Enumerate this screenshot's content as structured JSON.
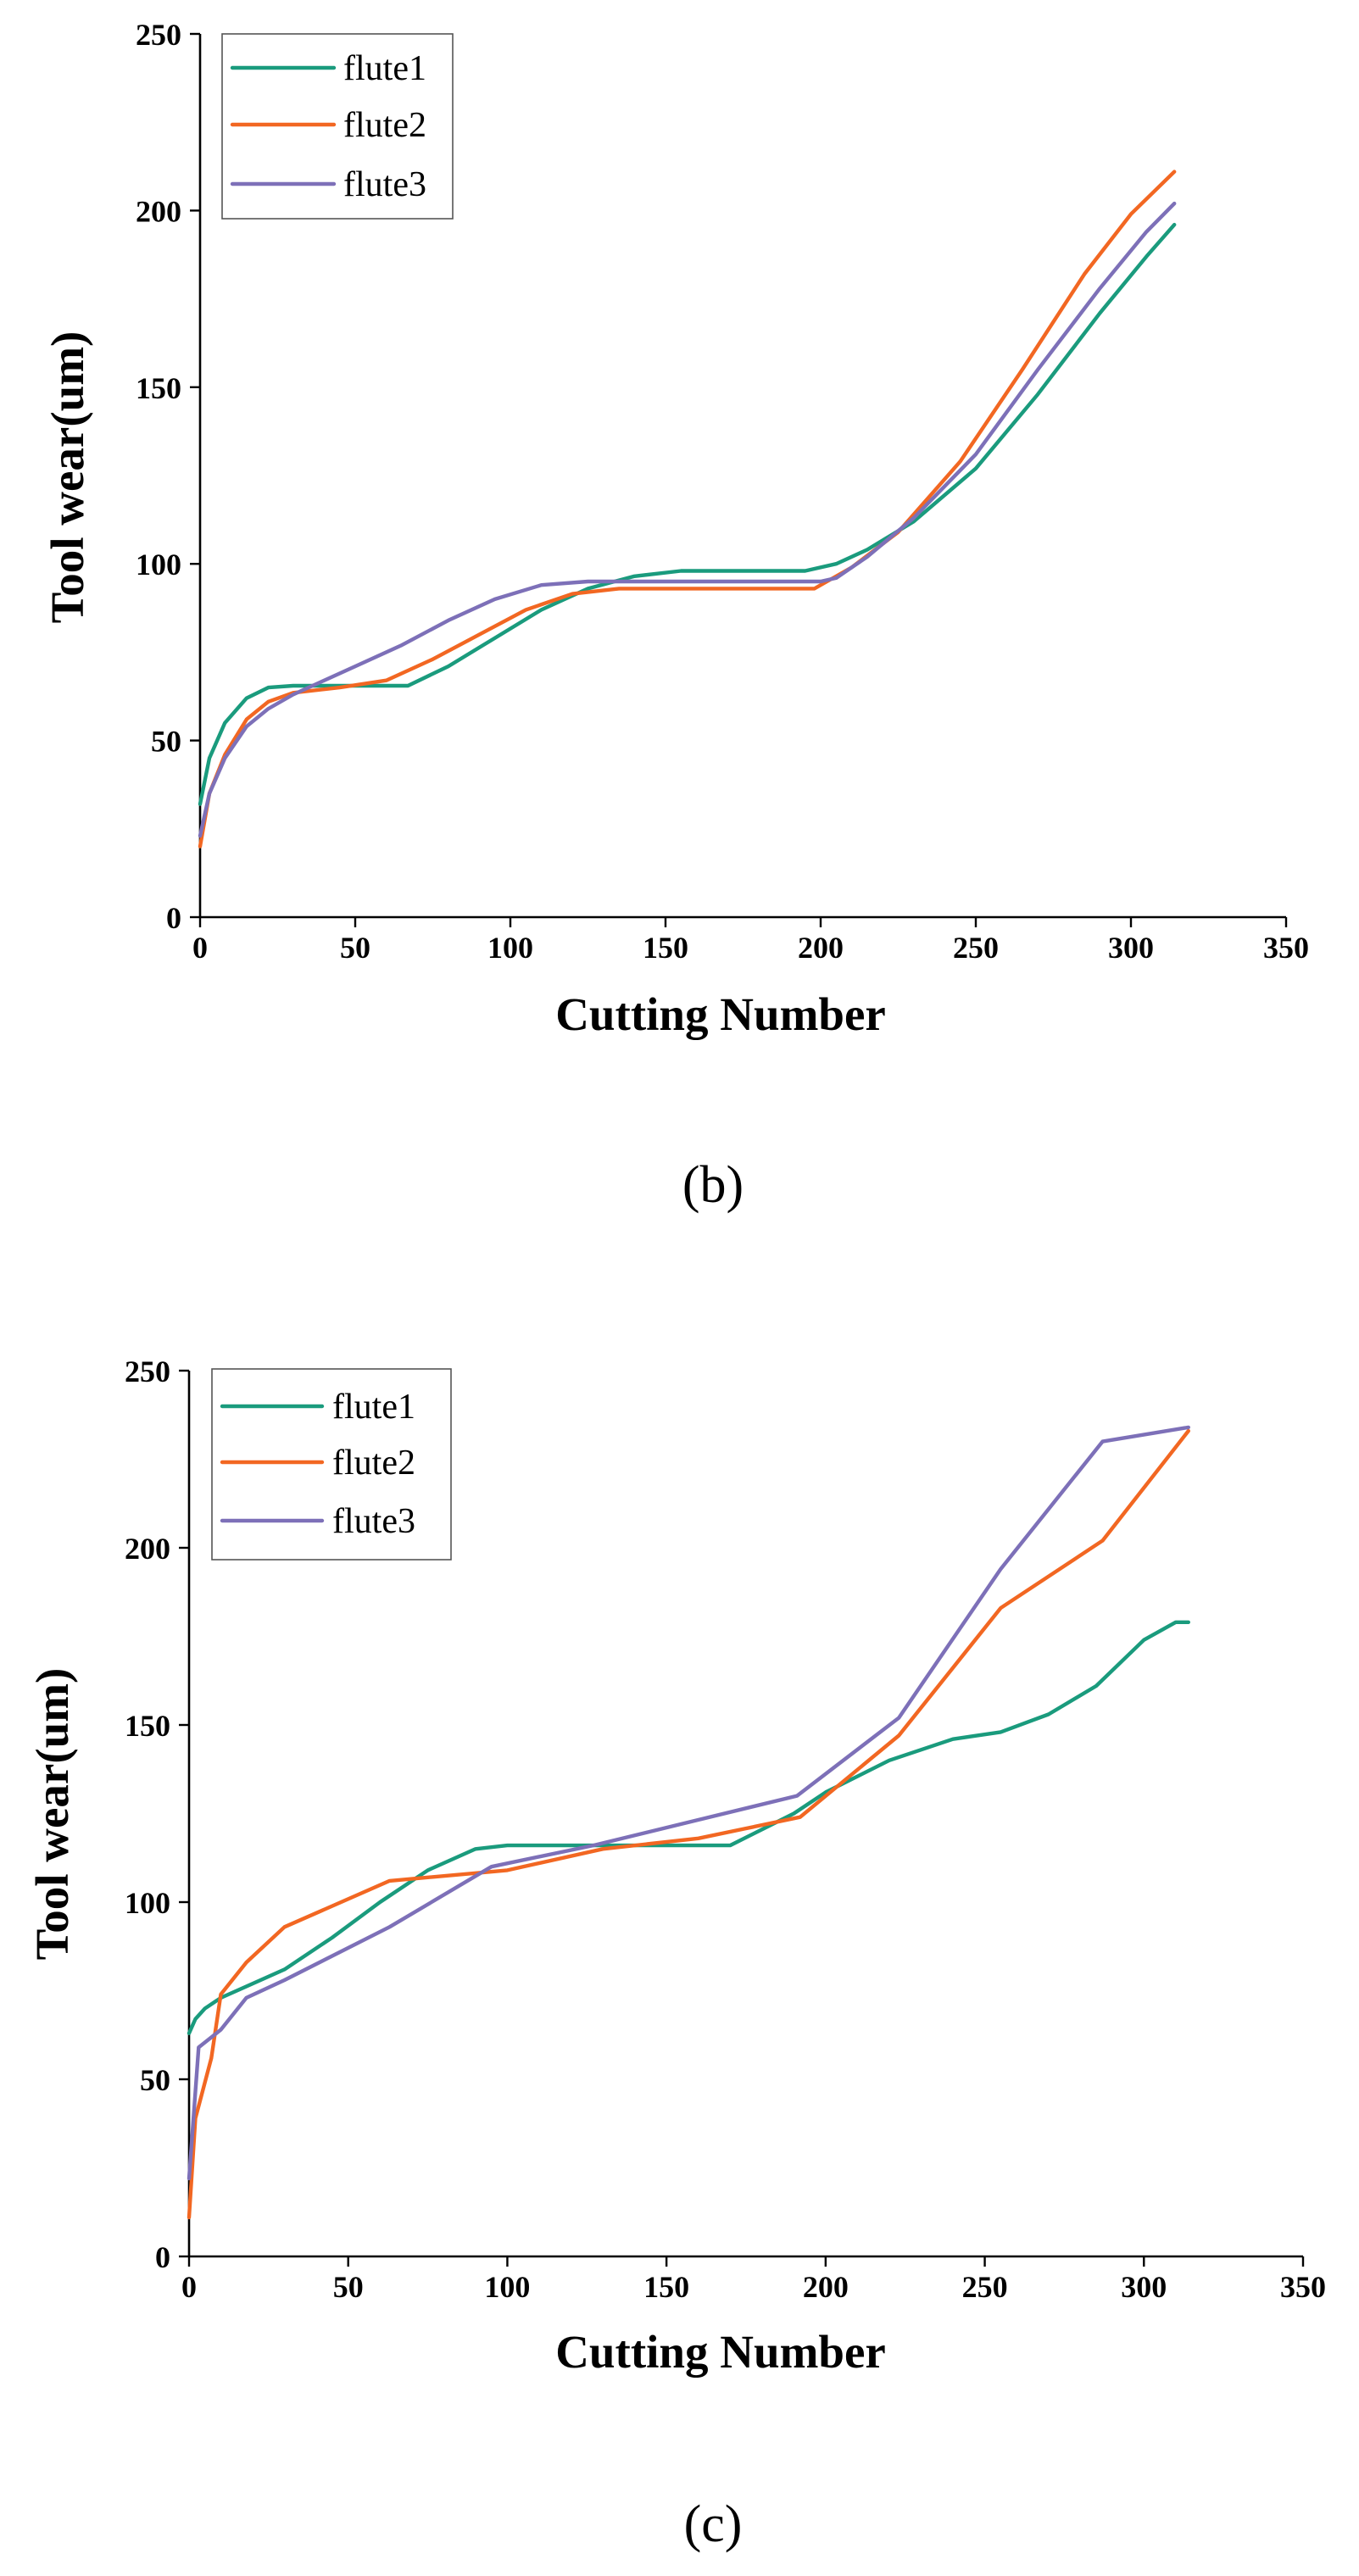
{
  "colors": {
    "flute1": "#1a9b7d",
    "flute2": "#f26722",
    "flute3": "#7d70b8"
  },
  "chart_data": [
    {
      "type": "line",
      "panel_label": "(b)",
      "xlabel": "Cutting Number",
      "ylabel": "Tool wear(um)",
      "xlim": [
        0,
        350
      ],
      "ylim": [
        0,
        250
      ],
      "xticks": [
        0,
        50,
        100,
        150,
        200,
        250,
        300,
        350
      ],
      "yticks": [
        0,
        50,
        100,
        150,
        200,
        250
      ],
      "legend_position": "top-left",
      "series": [
        {
          "name": "flute1",
          "color": "#1a9b7d",
          "x": [
            0,
            3,
            8,
            15,
            22,
            30,
            45,
            60,
            67,
            80,
            95,
            110,
            125,
            140,
            155,
            170,
            185,
            195,
            205,
            215,
            230,
            250,
            270,
            290,
            305,
            314
          ],
          "y": [
            32,
            45,
            55,
            62,
            65,
            65.5,
            65.5,
            65.5,
            65.5,
            71,
            79,
            87,
            93,
            96.5,
            98,
            98,
            98,
            98,
            100,
            104,
            112,
            127,
            148,
            171,
            187,
            196
          ]
        },
        {
          "name": "flute2",
          "color": "#f26722",
          "x": [
            0,
            3,
            8,
            15,
            22,
            30,
            45,
            60,
            75,
            90,
            105,
            120,
            135,
            150,
            170,
            190,
            198,
            210,
            225,
            245,
            265,
            285,
            300,
            314
          ],
          "y": [
            20,
            35,
            46,
            56,
            61,
            63.5,
            65,
            67,
            73,
            80,
            87,
            91.5,
            93,
            93,
            93,
            93,
            93,
            99,
            109,
            129,
            155,
            182,
            199,
            211
          ]
        },
        {
          "name": "flute3",
          "color": "#7d70b8",
          "x": [
            0,
            3,
            8,
            15,
            22,
            30,
            40,
            50,
            65,
            80,
            95,
            110,
            125,
            140,
            160,
            180,
            200,
            205,
            215,
            230,
            250,
            270,
            290,
            305,
            314
          ],
          "y": [
            23,
            35,
            45,
            54,
            59,
            63,
            67,
            71,
            77,
            84,
            90,
            94,
            95,
            95,
            95,
            95,
            95,
            96,
            102,
            113,
            131,
            155,
            178,
            194,
            202
          ]
        }
      ]
    },
    {
      "type": "line",
      "panel_label": "(c)",
      "xlabel": "Cutting Number",
      "ylabel": "Tool wear(um)",
      "xlim": [
        0,
        350
      ],
      "ylim": [
        0,
        250
      ],
      "xticks": [
        0,
        50,
        100,
        150,
        200,
        250,
        300,
        350
      ],
      "yticks": [
        0,
        50,
        100,
        150,
        200,
        250
      ],
      "legend_position": "top-left",
      "series": [
        {
          "name": "flute1",
          "color": "#1a9b7d",
          "x": [
            0,
            2,
            5,
            10,
            20,
            30,
            45,
            60,
            75,
            90,
            100,
            115,
            130,
            150,
            170,
            190,
            200,
            220,
            240,
            255,
            270,
            285,
            300,
            310,
            314
          ],
          "y": [
            63,
            67,
            70,
            73,
            77,
            81,
            90,
            100,
            109,
            115,
            116,
            116,
            116,
            116,
            116,
            125,
            131,
            140,
            146,
            148,
            153,
            161,
            174,
            179,
            179
          ]
        },
        {
          "name": "flute2",
          "color": "#f26722",
          "x": [
            0,
            2,
            7,
            10,
            18,
            30,
            63,
            100,
            130,
            160,
            192,
            223,
            255,
            287,
            314
          ],
          "y": [
            11,
            39,
            56,
            74,
            83,
            93,
            106,
            109,
            115,
            118,
            124,
            147,
            183,
            202,
            233
          ]
        },
        {
          "name": "flute3",
          "color": "#7d70b8",
          "x": [
            0,
            3,
            10,
            18,
            30,
            63,
            95,
            127,
            159,
            191,
            223,
            255,
            287,
            314
          ],
          "y": [
            22,
            59,
            64,
            73,
            78,
            93,
            110,
            116,
            123,
            130,
            152,
            194,
            230,
            234
          ]
        }
      ]
    }
  ]
}
